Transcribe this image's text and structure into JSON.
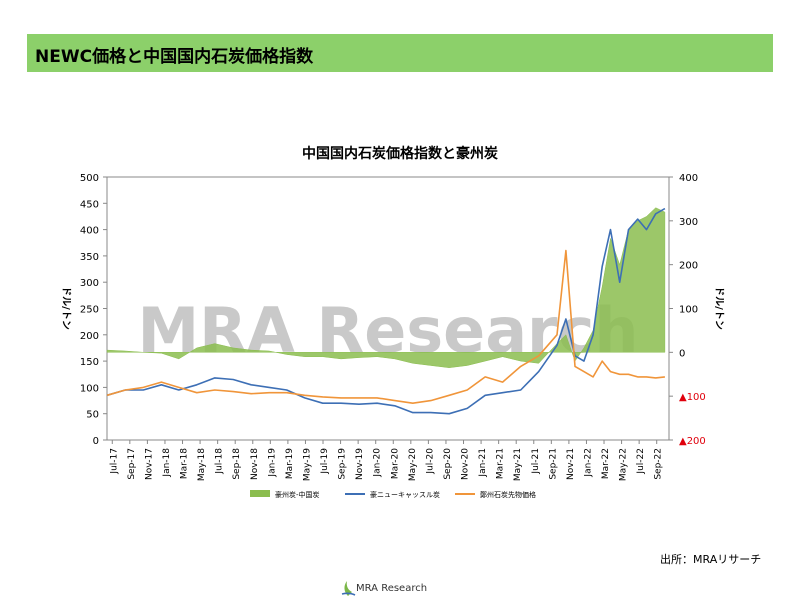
{
  "header": {
    "title": "NEWC価格と中国国内石炭価格指数"
  },
  "source": "出所：MRAリサーチ",
  "footer": {
    "logo_text": "MRA Research"
  },
  "watermark": "MRA Research",
  "colors": {
    "spread": "#8bbd4f",
    "newc": "#3d6fb5",
    "zhengzhou": "#f0953a",
    "banner": "#8cd06a",
    "negative_label": "#e0000c"
  },
  "chart_data": {
    "type": "line",
    "title": "中国国内石炭価格指数と豪州炭",
    "ylabel": "ドル/トン",
    "y2label": "ドル/トン",
    "ylim": [
      0,
      500
    ],
    "y2lim": [
      -200,
      400
    ],
    "yticks": [
      "0",
      "50",
      "100",
      "150",
      "200",
      "250",
      "300",
      "350",
      "400",
      "450",
      "500"
    ],
    "y2ticks": [
      {
        "value": 400,
        "label": "400",
        "negative": false
      },
      {
        "value": 300,
        "label": "300",
        "negative": false
      },
      {
        "value": 200,
        "label": "200",
        "negative": false
      },
      {
        "value": 100,
        "label": "100",
        "negative": false
      },
      {
        "value": 0,
        "label": "0",
        "negative": false
      },
      {
        "value": -100,
        "label": "▲100",
        "negative": true
      },
      {
        "value": -200,
        "label": "▲200",
        "negative": true
      }
    ],
    "xticks": [
      "Jul-17",
      "Sep-17",
      "Nov-17",
      "Jan-18",
      "Mar-18",
      "May-18",
      "Jul-18",
      "Sep-18",
      "Nov-18",
      "Jan-19",
      "Mar-19",
      "May-19",
      "Jul-19",
      "Sep-19",
      "Nov-19",
      "Jan-20",
      "Mar-20",
      "May-20",
      "Jul-20",
      "Sep-20",
      "Nov-20",
      "Jan-21",
      "Mar-21",
      "May-21",
      "Jul-21",
      "Sep-21",
      "Nov-21",
      "Jan-22",
      "Mar-22",
      "May-22",
      "Jul-22",
      "Sep-22"
    ],
    "legend_position": "bottom",
    "series": [
      {
        "name": "豪州炭-中国炭",
        "type": "area",
        "axis": "right",
        "x": [
          "2017-07",
          "2017-09",
          "2017-11",
          "2018-01",
          "2018-03",
          "2018-05",
          "2018-07",
          "2018-09",
          "2018-11",
          "2019-01",
          "2019-03",
          "2019-05",
          "2019-07",
          "2019-09",
          "2019-11",
          "2020-01",
          "2020-03",
          "2020-05",
          "2020-07",
          "2020-09",
          "2020-11",
          "2021-01",
          "2021-03",
          "2021-05",
          "2021-07",
          "2021-09",
          "2021-10",
          "2021-11",
          "2021-12",
          "2022-01",
          "2022-02",
          "2022-03",
          "2022-04",
          "2022-05",
          "2022-06",
          "2022-07",
          "2022-08",
          "2022-09"
        ],
        "values": [
          5,
          3,
          0,
          -2,
          -15,
          10,
          20,
          10,
          5,
          3,
          -5,
          -10,
          -10,
          -15,
          -12,
          -10,
          -15,
          -25,
          -30,
          -35,
          -30,
          -20,
          -10,
          -20,
          -25,
          20,
          40,
          -20,
          10,
          50,
          150,
          260,
          200,
          280,
          300,
          310,
          330,
          320
        ]
      },
      {
        "name": "豪ニューキャッスル炭",
        "type": "line",
        "axis": "left",
        "x": [
          "2017-07",
          "2017-09",
          "2017-11",
          "2018-01",
          "2018-03",
          "2018-05",
          "2018-07",
          "2018-09",
          "2018-11",
          "2019-01",
          "2019-03",
          "2019-05",
          "2019-07",
          "2019-09",
          "2019-11",
          "2020-01",
          "2020-03",
          "2020-05",
          "2020-07",
          "2020-09",
          "2020-11",
          "2021-01",
          "2021-03",
          "2021-05",
          "2021-07",
          "2021-09",
          "2021-10",
          "2021-11",
          "2021-12",
          "2022-01",
          "2022-02",
          "2022-03",
          "2022-04",
          "2022-05",
          "2022-06",
          "2022-07",
          "2022-08",
          "2022-09"
        ],
        "values": [
          85,
          95,
          95,
          105,
          95,
          105,
          118,
          115,
          105,
          100,
          95,
          80,
          70,
          70,
          68,
          70,
          65,
          52,
          52,
          50,
          60,
          85,
          90,
          95,
          130,
          180,
          230,
          160,
          150,
          200,
          330,
          400,
          300,
          400,
          420,
          400,
          430,
          440
        ]
      },
      {
        "name": "鄭州石炭先物価格",
        "type": "line",
        "axis": "left",
        "x": [
          "2017-07",
          "2017-09",
          "2017-11",
          "2018-01",
          "2018-03",
          "2018-05",
          "2018-07",
          "2018-09",
          "2018-11",
          "2019-01",
          "2019-03",
          "2019-05",
          "2019-07",
          "2019-09",
          "2019-11",
          "2020-01",
          "2020-03",
          "2020-05",
          "2020-07",
          "2020-09",
          "2020-11",
          "2021-01",
          "2021-03",
          "2021-05",
          "2021-07",
          "2021-09",
          "2021-10",
          "2021-11",
          "2021-12",
          "2022-01",
          "2022-02",
          "2022-03",
          "2022-04",
          "2022-05",
          "2022-06",
          "2022-07",
          "2022-08",
          "2022-09"
        ],
        "values": [
          85,
          95,
          100,
          110,
          100,
          90,
          95,
          92,
          88,
          90,
          90,
          85,
          82,
          80,
          80,
          80,
          75,
          70,
          75,
          85,
          95,
          120,
          110,
          140,
          160,
          200,
          360,
          140,
          130,
          120,
          150,
          130,
          125,
          125,
          120,
          120,
          118,
          120
        ]
      }
    ]
  }
}
